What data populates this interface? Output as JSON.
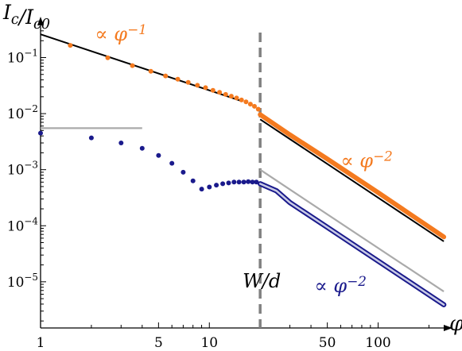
{
  "chart_data": {
    "type": "scatter",
    "title": "",
    "xlabel": "φ",
    "ylabel": "I_c/I_c0",
    "x_scale": "log",
    "y_scale": "log",
    "xlim": [
      1,
      250
    ],
    "ylim": [
      1.5e-06,
      0.4
    ],
    "grid": false,
    "x_ticks": [
      {
        "value": 1,
        "label": "1"
      },
      {
        "value": 5,
        "label": "5"
      },
      {
        "value": 10,
        "label": "10"
      },
      {
        "value": 50,
        "label": "50"
      },
      {
        "value": 100,
        "label": "100"
      }
    ],
    "y_ticks": [
      {
        "value": 0.1,
        "base": "10",
        "exp": "−1"
      },
      {
        "value": 0.01,
        "base": "10",
        "exp": "−2"
      },
      {
        "value": 0.001,
        "base": "10",
        "exp": "−3"
      },
      {
        "value": 0.0001,
        "base": "10",
        "exp": "−4"
      },
      {
        "value": 1e-05,
        "base": "10",
        "exp": "−5"
      }
    ],
    "vline": {
      "x": 20,
      "label": "W/d",
      "color": "#808080"
    },
    "series": [
      {
        "color": "#f47a1f",
        "points": [
          [
            1.5,
            0.165
          ],
          [
            2.5,
            0.099
          ],
          [
            3.5,
            0.072
          ],
          [
            4.5,
            0.057
          ],
          [
            5.5,
            0.047
          ],
          [
            6.5,
            0.041
          ],
          [
            7.5,
            0.036
          ],
          [
            8.5,
            0.032
          ],
          [
            9.5,
            0.029
          ],
          [
            10.5,
            0.026
          ],
          [
            11.5,
            0.024
          ],
          [
            12.5,
            0.022
          ],
          [
            13.5,
            0.0205
          ],
          [
            14.5,
            0.019
          ],
          [
            15.5,
            0.0175
          ],
          [
            16.5,
            0.0162
          ],
          [
            17.5,
            0.0148
          ],
          [
            18.5,
            0.0135
          ],
          [
            19.5,
            0.012
          ]
        ],
        "curve": [
          [
            20,
            0.0096
          ],
          [
            30,
            0.0042
          ],
          [
            50,
            0.00155
          ],
          [
            100,
            0.00039
          ],
          [
            150,
            0.000171
          ],
          [
            245,
            6.32e-05
          ]
        ]
      },
      {
        "color": "#1a1a8c",
        "points": [
          [
            1,
            0.0045
          ],
          [
            2,
            0.0037
          ],
          [
            3,
            0.003
          ],
          [
            4,
            0.0024
          ],
          [
            5,
            0.0018
          ],
          [
            6,
            0.0013
          ],
          [
            7,
            0.0009
          ],
          [
            8,
            0.00063
          ],
          [
            9,
            0.00045
          ],
          [
            10,
            0.00049
          ],
          [
            11,
            0.00053
          ],
          [
            12,
            0.00056
          ],
          [
            13,
            0.00058
          ],
          [
            14,
            0.0006
          ],
          [
            15,
            0.0006
          ],
          [
            16,
            0.0006
          ],
          [
            17,
            0.00061
          ],
          [
            18,
            0.0006
          ],
          [
            19,
            0.0006
          ]
        ],
        "curve": [
          [
            20,
            0.00056
          ],
          [
            25,
            0.00042
          ],
          [
            30,
            0.00026
          ],
          [
            50,
            9.4e-05
          ],
          [
            100,
            2.35e-05
          ],
          [
            150,
            1.04e-05
          ],
          [
            245,
            3.9e-06
          ]
        ]
      }
    ],
    "fit_lines": [
      {
        "color": "#000000",
        "points": [
          [
            1,
            0.26
          ],
          [
            15.5,
            0.0168
          ]
        ]
      },
      {
        "color": "#000000",
        "points": [
          [
            20,
            0.0079
          ],
          [
            245,
            5.27e-05
          ]
        ]
      },
      {
        "color": "#aaaaaa",
        "points": [
          [
            1,
            0.0055
          ],
          [
            4,
            0.0055
          ]
        ]
      },
      {
        "color": "#aaaaaa",
        "points": [
          [
            20,
            0.001
          ],
          [
            30,
            0.000444
          ],
          [
            245,
            6.7e-06
          ]
        ]
      }
    ],
    "annotations": [
      {
        "text": "∝ φ",
        "exp": "−1",
        "x": 2.1,
        "y": 0.2,
        "color": "#f47a1f"
      },
      {
        "text": "∝ φ",
        "exp": "−2",
        "x": 60,
        "y": 0.0011,
        "color": "#f47a1f"
      },
      {
        "text": "∝ φ",
        "exp": "−2",
        "x": 42,
        "y": 6.5e-06,
        "color": "#1a1a8c"
      }
    ]
  }
}
